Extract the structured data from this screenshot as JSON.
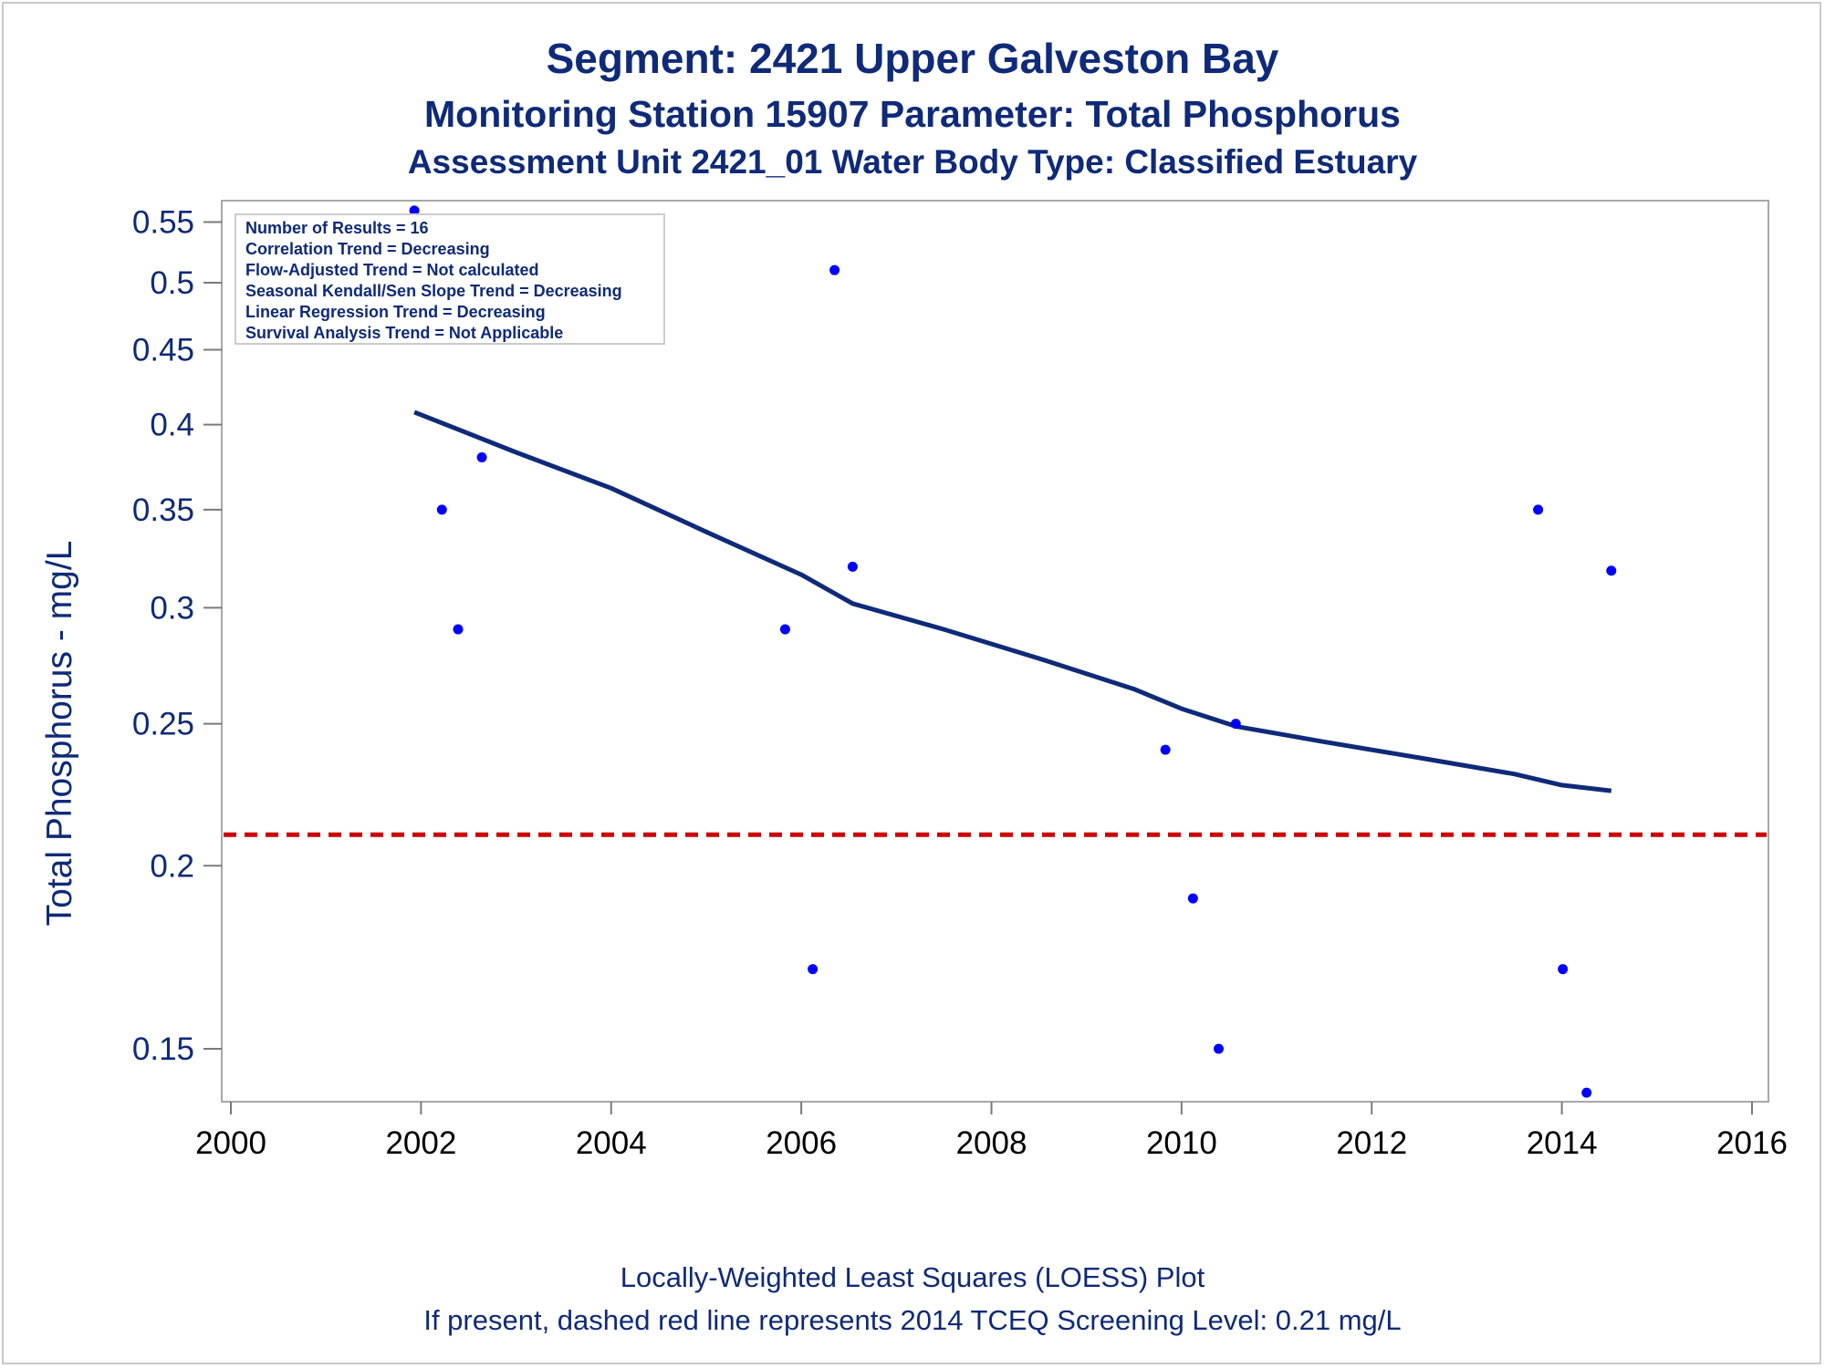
{
  "chart_data": {
    "type": "scatter",
    "title": "Segment: 2421  Upper Galveston Bay",
    "subtitle": "Monitoring Station 15907 Parameter: Total Phosphorus",
    "subtitle2": "Assessment Unit 2421_01   Water Body Type: Classified Estuary",
    "xlabel": "",
    "ylabel": "Total Phosphorus - mg/L",
    "yscale": "log",
    "xlim": [
      2000,
      2016
    ],
    "ylim": [
      0.138,
      0.565
    ],
    "xticks": [
      2000,
      2002,
      2004,
      2006,
      2008,
      2010,
      2012,
      2014,
      2016
    ],
    "yticks": [
      0.15,
      0.2,
      0.25,
      0.3,
      0.35,
      0.4,
      0.45,
      0.5,
      0.55
    ],
    "ytick_labels": [
      "0.15",
      "0.2",
      "0.25",
      "0.3",
      "0.35",
      "0.4",
      "0.45",
      "0.5",
      "0.55"
    ],
    "grid": false,
    "series": [
      {
        "type": "scatter",
        "color": "#0000ff",
        "x": [
          2001.93,
          2002.22,
          2002.39,
          2002.64,
          2005.83,
          2006.12,
          2006.35,
          2006.54,
          2009.83,
          2010.12,
          2010.39,
          2010.57,
          2013.75,
          2014.01,
          2014.26,
          2014.52
        ],
        "y": [
          0.56,
          0.35,
          0.29,
          0.38,
          0.29,
          0.17,
          0.51,
          0.32,
          0.24,
          0.19,
          0.15,
          0.25,
          0.35,
          0.17,
          0.14,
          0.318
        ]
      },
      {
        "type": "line",
        "color": "#0f2a78",
        "x": [
          2001.93,
          2003.0,
          2004.0,
          2005.0,
          2006.0,
          2006.54,
          2007.5,
          2008.5,
          2009.5,
          2010.0,
          2010.57,
          2011.5,
          2012.5,
          2013.5,
          2014.0,
          2014.52
        ],
        "y": [
          0.408,
          0.383,
          0.362,
          0.338,
          0.316,
          0.302,
          0.29,
          0.277,
          0.264,
          0.256,
          0.249,
          0.243,
          0.237,
          0.231,
          0.227,
          0.225
        ]
      }
    ],
    "reference_line": {
      "y": 0.21,
      "style": "dashed",
      "color": "#cc0000"
    },
    "inset": {
      "lines": [
        "Number of Results = 16",
        "Correlation Trend = Decreasing",
        "Flow-Adjusted Trend = Not calculated",
        "Seasonal Kendall/Sen Slope Trend = Decreasing",
        "Linear Regression Trend = Decreasing",
        "Survival Analysis Trend = Not Applicable"
      ]
    },
    "footnotes": [
      "Locally-Weighted Least Squares (LOESS) Plot",
      "If present, dashed red line represents 2014 TCEQ Screening Level: 0.21 mg/L"
    ]
  }
}
